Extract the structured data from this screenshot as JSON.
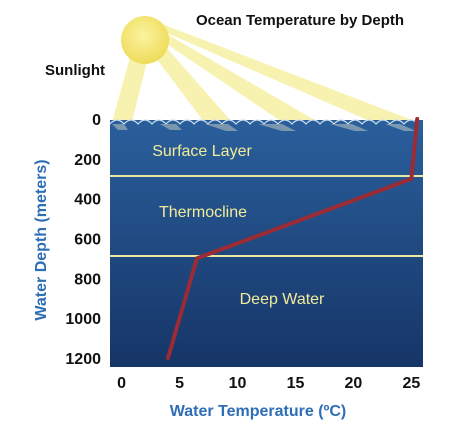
{
  "chart_data": {
    "type": "line",
    "title": "Ocean Temperature by Depth",
    "xlabel": "Water Temperature (ºC)",
    "ylabel": "Water Depth (meters)",
    "xlim": [
      -1,
      26
    ],
    "ylim": [
      1200,
      0
    ],
    "x_ticks": [
      "0",
      "5",
      "10",
      "15",
      "20",
      "25"
    ],
    "y_ticks": [
      "0",
      "200",
      "400",
      "600",
      "800",
      "1000",
      "1200"
    ],
    "series": [
      {
        "x": [
          25.5,
          25,
          6.5,
          4
        ],
        "y": [
          0,
          300,
          700,
          1200
        ]
      }
    ],
    "layers": [
      {
        "label": "Surface Layer",
        "from_depth": 0,
        "to_depth": 300
      },
      {
        "label": "Thermocline",
        "from_depth": 300,
        "to_depth": 700
      },
      {
        "label": "Deep Water",
        "from_depth": 700,
        "to_depth": 1200
      }
    ],
    "annotations": [
      "Sunlight"
    ],
    "grid": false
  },
  "colors": {
    "ocean_top": "#2a5f9c",
    "ocean_bottom": "#163567",
    "profile_line": "#9b2b34",
    "layer_label": "#f2ec9a",
    "boundary_line": "#ece7a2",
    "axis_label": "#2e6eb5",
    "sun": "#f4e474",
    "sunbeam": "#f6f0a2"
  }
}
